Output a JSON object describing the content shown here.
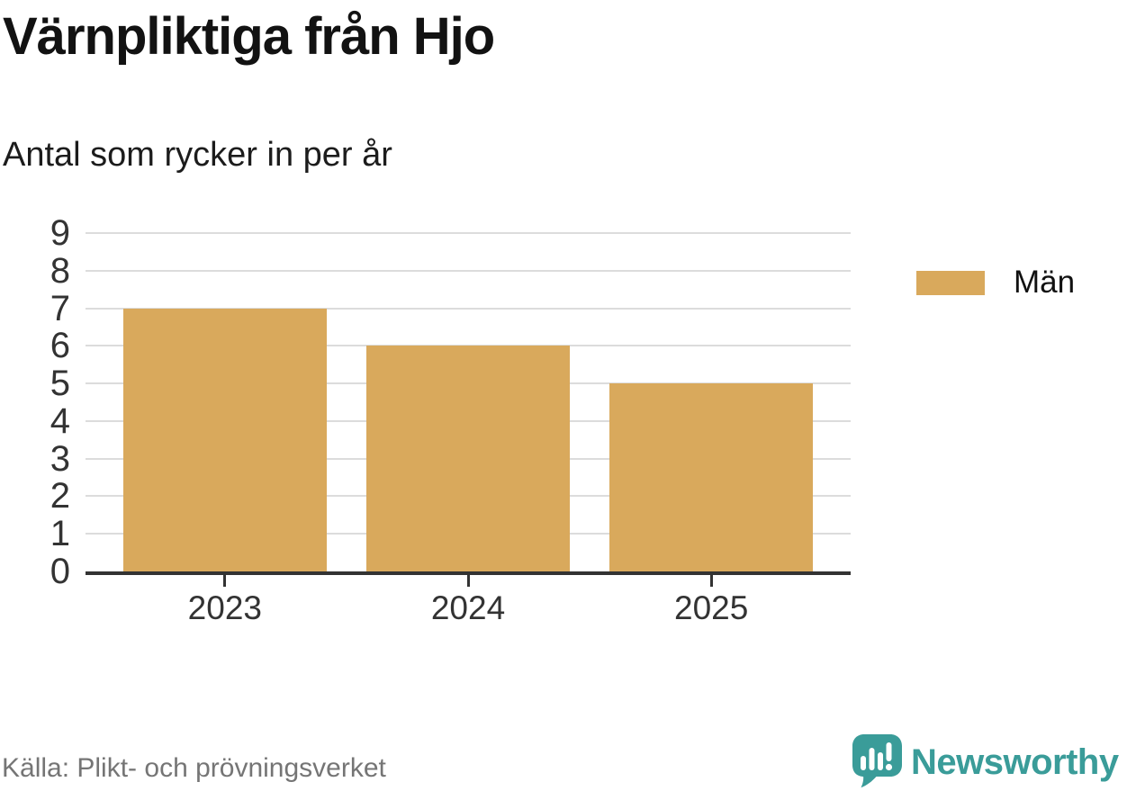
{
  "header": {
    "title": "Värnpliktiga från Hjo",
    "subtitle": "Antal som rycker in per år"
  },
  "chart_data": {
    "type": "bar",
    "title": "Värnpliktiga från Hjo",
    "subtitle": "Antal som rycker in per år",
    "categories": [
      "2023",
      "2024",
      "2025"
    ],
    "series": [
      {
        "name": "Män",
        "color": "#D9A95C",
        "values": [
          7,
          6,
          5
        ]
      }
    ],
    "ylim": [
      0,
      9
    ],
    "yticks": [
      0,
      1,
      2,
      3,
      4,
      5,
      6,
      7,
      8,
      9
    ],
    "grid": "horizontal-light-gray",
    "legend_position": "right"
  },
  "legend": {
    "items": [
      {
        "label": "Män",
        "color": "#D9A95C"
      }
    ]
  },
  "footer": {
    "source": "Källa: Plikt- och prövningsverket",
    "brand": "Newsworthy"
  },
  "icons": {
    "brand_icon": "speech-bubble-bar-chart-exclamation"
  },
  "colors": {
    "bar": "#D9A95C",
    "axis": "#333333",
    "grid": "#DCDCDC",
    "tick_text": "#333333",
    "title_text": "#121212",
    "source_text": "#757575",
    "brand_teal": "#3A9C99",
    "background": "#FFFFFF"
  }
}
